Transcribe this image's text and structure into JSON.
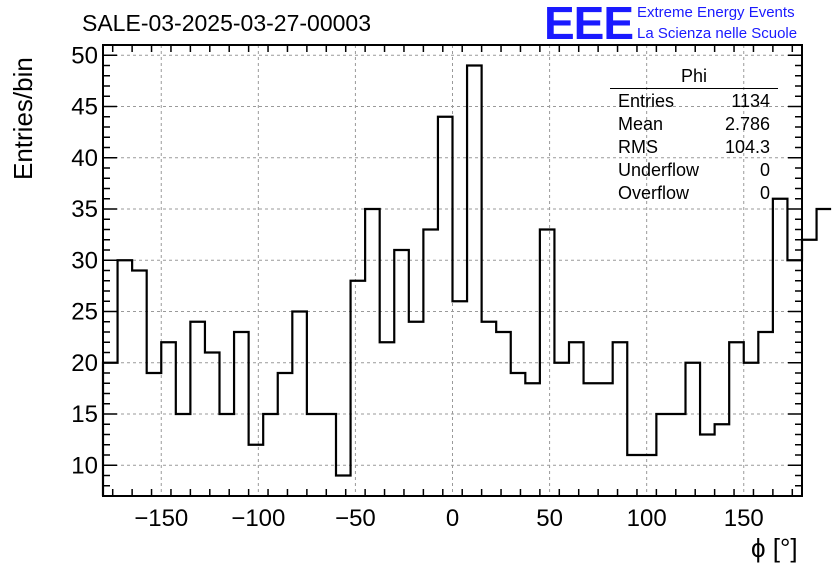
{
  "header": {
    "title": "SALE-03-2025-03-27-00003",
    "logo_text": "EEE",
    "org_line1": "Extreme Energy Events",
    "org_line2": "La Scienza nelle Scuole"
  },
  "stats_box": {
    "title": "Phi",
    "rows": [
      {
        "label": "Entries",
        "value": "1134"
      },
      {
        "label": "Mean",
        "value": "2.786"
      },
      {
        "label": "RMS",
        "value": "104.3"
      },
      {
        "label": "Underflow",
        "value": "0"
      },
      {
        "label": "Overflow",
        "value": "0"
      }
    ]
  },
  "chart_data": {
    "type": "bar",
    "style": "step-histogram",
    "title": "SALE-03-2025-03-27-00003",
    "xlabel": "ϕ [°]",
    "ylabel": "Entries/bin",
    "xlim": [
      -180,
      180
    ],
    "ylim": [
      7,
      51
    ],
    "grid": true,
    "bin_width": 7.5,
    "bin_low_edge": -180,
    "values": [
      20,
      30,
      29,
      19,
      22,
      15,
      24,
      21,
      15,
      23,
      12,
      15,
      19,
      25,
      15,
      15,
      9,
      28,
      35,
      22,
      31,
      24,
      33,
      44,
      26,
      49,
      24,
      23,
      19,
      18,
      33,
      20,
      22,
      18,
      18,
      22,
      11,
      11,
      15,
      15,
      20,
      13,
      14,
      22,
      20,
      23,
      36,
      30,
      32,
      35
    ],
    "x_ticks": [
      -150,
      -100,
      -50,
      0,
      50,
      100,
      150
    ],
    "y_ticks": [
      10,
      15,
      20,
      25,
      30,
      35,
      40,
      45,
      50
    ],
    "colors": {
      "line": "#000000",
      "grid": "#9a9a9a",
      "logo": "#1a1aff"
    }
  }
}
